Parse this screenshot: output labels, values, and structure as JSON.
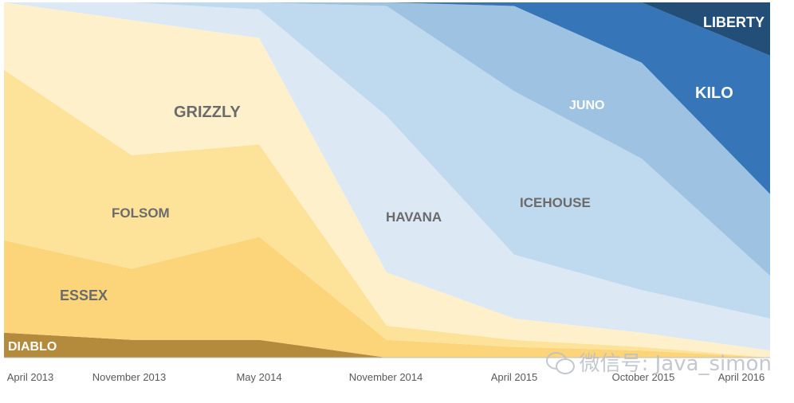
{
  "chart_data": {
    "type": "area",
    "title": "",
    "xlabel": "",
    "ylabel": "",
    "categories": [
      "April 2013",
      "November 2013",
      "May 2014",
      "November 2014",
      "April 2015",
      "October 2015",
      "April 2016"
    ],
    "y_range": [
      0,
      100
    ],
    "stacked_percent": true,
    "legend": "none",
    "series": [
      {
        "name": "DIABLO",
        "color": "#b48a3c",
        "values": [
          7,
          5,
          5,
          0,
          0,
          0,
          0
        ]
      },
      {
        "name": "ESSEX",
        "color": "#fcd57a",
        "values": [
          26,
          20,
          29,
          5,
          3,
          2,
          0
        ]
      },
      {
        "name": "FOLSOM",
        "color": "#fde29a",
        "values": [
          48,
          32,
          26,
          4,
          2,
          1,
          0
        ]
      },
      {
        "name": "GRIZZLY",
        "color": "#fff0cc",
        "values": [
          19,
          38,
          30,
          15,
          6,
          4,
          2
        ]
      },
      {
        "name": "HAVANA",
        "color": "#dde8f5",
        "values": [
          0,
          5,
          8,
          44,
          18,
          12,
          9
        ]
      },
      {
        "name": "ICEHOUSE",
        "color": "#bfd9ee",
        "values": [
          0,
          0,
          2,
          31,
          46,
          37,
          12
        ]
      },
      {
        "name": "JUNO",
        "color": "#9ec3e2",
        "values": [
          0,
          0,
          0,
          1,
          24,
          27,
          23
        ]
      },
      {
        "name": "KILO",
        "color": "#3575b8",
        "values": [
          0,
          0,
          0,
          0,
          1,
          17,
          39
        ]
      },
      {
        "name": "LIBERTY",
        "color": "#234e78",
        "values": [
          0,
          0,
          0,
          0,
          0,
          0,
          15
        ]
      }
    ]
  },
  "watermark": {
    "text": "微信号: Java_simon"
  }
}
